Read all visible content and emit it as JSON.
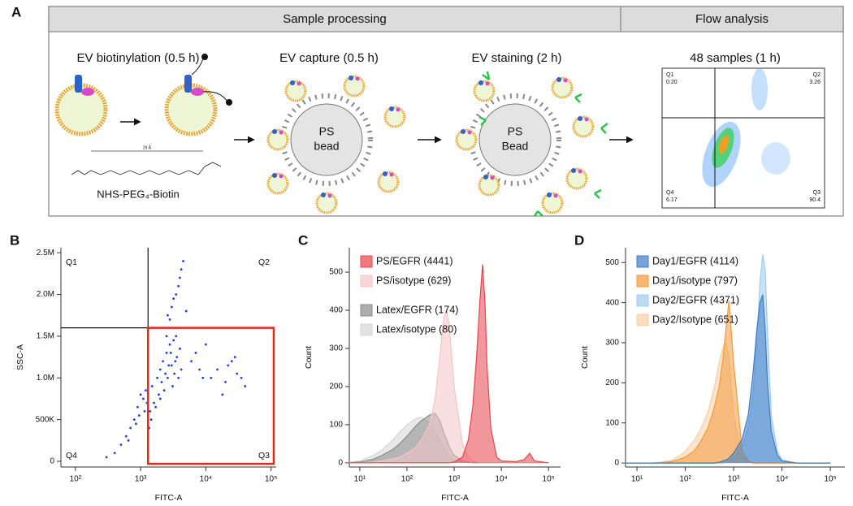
{
  "panel_a": {
    "label": "A",
    "headers": [
      "Sample processing",
      "Flow analysis"
    ],
    "steps": [
      "EV biotinylation (0.5 h)",
      "EV capture (0.5 h)",
      "EV staining (2 h)",
      "48 samples (1 h)"
    ],
    "reagent": "NHS-PEG₄-Biotin",
    "spacer_length": "29 Å",
    "beads": [
      [
        "PS",
        "bead"
      ],
      [
        "PS",
        "Bead"
      ]
    ],
    "flow_plot": [
      {
        "name": "Q1",
        "value": "0.20"
      },
      {
        "name": "Q2",
        "value": "3.26"
      },
      {
        "name": "Q4",
        "value": "6.17"
      },
      {
        "name": "Q3",
        "value": "90.4"
      }
    ]
  },
  "chart_data": [
    {
      "type": "scatter",
      "panel_label": "B",
      "x_label": "FITC-A",
      "y_label": "SSC-A",
      "xlog": true,
      "color": "#2140d8",
      "xlim": [
        60,
        120000
      ],
      "ylim": [
        -68000,
        2560000
      ],
      "xticks": [
        {
          "value": 100,
          "label": "10²"
        },
        {
          "value": 1000,
          "label": "10³"
        },
        {
          "value": 10000,
          "label": "10⁴"
        },
        {
          "value": 100000,
          "label": "10⁵"
        }
      ],
      "yticks": [
        0,
        {
          "value": 500000,
          "label": "500K"
        },
        {
          "value": 1000000,
          "label": "1.0M"
        },
        {
          "value": 1500000,
          "label": "1.5M"
        },
        {
          "value": 2000000,
          "label": "2.0M"
        },
        {
          "value": 2500000,
          "label": "2.5M"
        }
      ],
      "quadrant_x": 1300,
      "quadrant_y": 1600000,
      "quadrants": [
        "Q1",
        "Q2",
        "Q3",
        "Q4"
      ],
      "gate_xlim": [
        1300,
        110000
      ],
      "gate_ylim": [
        -30000,
        1600000
      ],
      "gate_color": "#e8281e",
      "x": [
        1500,
        1800,
        2000,
        2200,
        2500,
        2800,
        3000,
        3300,
        3600,
        4000,
        1600,
        1900,
        2100,
        2400,
        2700,
        2900,
        3200,
        3500,
        3800,
        4200,
        1400,
        1700,
        2300,
        2600,
        3100,
        3400,
        1350,
        1450,
        2000,
        2500,
        800,
        600,
        900,
        1000,
        1100,
        700,
        500,
        400,
        1200,
        950,
        300,
        650,
        850,
        1150,
        1250,
        2800,
        3000,
        3500,
        4000,
        4500,
        3200,
        3800,
        2600,
        4200,
        5000,
        12000,
        15000,
        20000,
        25000,
        30000,
        18000,
        22000,
        40000,
        28000,
        35000,
        6000,
        8000,
        7000,
        9000,
        10000
      ],
      "y": [
        900000,
        1000000,
        1100000,
        1200000,
        1300000,
        1400000,
        1150000,
        1050000,
        1250000,
        1350000,
        700000,
        800000,
        950000,
        1050000,
        1150000,
        1300000,
        1450000,
        1500000,
        1000000,
        1100000,
        600000,
        650000,
        850000,
        1000000,
        900000,
        1200000,
        400000,
        500000,
        750000,
        1500000,
        500000,
        300000,
        650000,
        800000,
        750000,
        400000,
        200000,
        100000,
        850000,
        550000,
        50000,
        250000,
        450000,
        600000,
        700000,
        1700000,
        1850000,
        2000000,
        2200000,
        2400000,
        1950000,
        2100000,
        1750000,
        2300000,
        1800000,
        1000000,
        1100000,
        950000,
        1200000,
        1050000,
        800000,
        1150000,
        900000,
        1250000,
        1000000,
        1200000,
        1100000,
        1300000,
        1000000,
        1400000
      ]
    },
    {
      "type": "area",
      "panel_label": "C",
      "x_label": "FITC-A",
      "y_label": "Count",
      "xlog": true,
      "xlim": [
        6,
        180000
      ],
      "ylim": [
        -11,
        564
      ],
      "xticks": [
        {
          "value": 10,
          "label": "10¹"
        },
        {
          "value": 100,
          "label": "10²"
        },
        {
          "value": 1000,
          "label": "10³"
        },
        {
          "value": 10000,
          "label": "10⁴"
        },
        {
          "value": 100000,
          "label": "10⁵"
        }
      ],
      "yticks": [
        0,
        100,
        200,
        300,
        400,
        500
      ],
      "x": [
        5,
        10,
        20,
        30,
        50,
        70,
        100,
        150,
        200,
        300,
        400,
        500,
        600,
        700,
        800,
        1000,
        1500,
        2000,
        2500,
        3000,
        3500,
        4000,
        4500,
        5000,
        6000,
        8000,
        10000,
        20000,
        30000,
        40000,
        50000,
        100000
      ],
      "series": [
        {
          "name": "PS/EGFR (4441)",
          "color": "#e8434b",
          "values": [
            0,
            0,
            0,
            0,
            0,
            0,
            0,
            0,
            0,
            0,
            0,
            0,
            0,
            0,
            0,
            2,
            15,
            60,
            150,
            280,
            420,
            520,
            420,
            250,
            90,
            15,
            5,
            3,
            8,
            25,
            5,
            0
          ]
        },
        {
          "name": "PS/isotype (629)",
          "color": "#f5c4c6",
          "values": [
            0,
            0,
            2,
            5,
            10,
            15,
            25,
            40,
            60,
            100,
            170,
            280,
            380,
            400,
            350,
            200,
            50,
            15,
            5,
            2,
            0,
            0,
            0,
            0,
            0,
            0,
            0,
            0,
            0,
            0,
            0,
            0
          ]
        },
        {
          "name": "Latex/EGFR (174)",
          "color": "#8a8a8a",
          "values": [
            0,
            2,
            10,
            20,
            35,
            50,
            70,
            95,
            110,
            125,
            130,
            110,
            80,
            60,
            40,
            20,
            5,
            2,
            0,
            0,
            0,
            0,
            0,
            0,
            0,
            0,
            0,
            0,
            0,
            0,
            0,
            0
          ]
        },
        {
          "name": "Latex/isotype (80)",
          "color": "#d6d6d6",
          "values": [
            0,
            5,
            20,
            35,
            60,
            80,
            100,
            115,
            120,
            105,
            80,
            55,
            35,
            25,
            15,
            8,
            2,
            0,
            0,
            0,
            0,
            0,
            0,
            0,
            0,
            0,
            0,
            0,
            0,
            0,
            0,
            0
          ]
        }
      ]
    },
    {
      "type": "area",
      "panel_label": "D",
      "x_label": "FITC-A",
      "y_label": "Count",
      "xlog": true,
      "xlim": [
        5.8,
        200000
      ],
      "ylim": [
        -10,
        537
      ],
      "xticks": [
        {
          "value": 10,
          "label": "10¹"
        },
        {
          "value": 100,
          "label": "10²"
        },
        {
          "value": 1000,
          "label": "10³"
        },
        {
          "value": 10000,
          "label": "10⁴"
        },
        {
          "value": 100000,
          "label": "10⁵"
        }
      ],
      "yticks": [
        0,
        100,
        200,
        300,
        400,
        500
      ],
      "x": [
        5,
        10,
        20,
        30,
        50,
        70,
        100,
        150,
        200,
        300,
        400,
        500,
        600,
        700,
        800,
        1000,
        1500,
        2000,
        2500,
        3000,
        3500,
        4000,
        4500,
        5000,
        6000,
        8000,
        10000,
        20000,
        30000,
        40000,
        50000,
        100000
      ],
      "series": [
        {
          "name": "Day1/EGFR (4114)",
          "color": "#3d7cc9",
          "values": [
            0,
            0,
            0,
            0,
            0,
            0,
            0,
            0,
            0,
            0,
            0,
            2,
            5,
            8,
            12,
            25,
            60,
            120,
            220,
            330,
            400,
            420,
            330,
            200,
            80,
            20,
            5,
            0,
            0,
            0,
            0,
            0
          ]
        },
        {
          "name": "Day1/isotype (797)",
          "color": "#f39a3a",
          "values": [
            0,
            0,
            0,
            1,
            3,
            8,
            15,
            30,
            50,
            90,
            140,
            190,
            260,
            340,
            405,
            250,
            30,
            5,
            0,
            0,
            0,
            0,
            0,
            0,
            0,
            0,
            0,
            0,
            0,
            0,
            0,
            0
          ]
        },
        {
          "name": "Day2/EGFR (4371)",
          "color": "#9fcbf0",
          "values": [
            0,
            0,
            0,
            0,
            0,
            0,
            0,
            0,
            0,
            0,
            0,
            0,
            0,
            2,
            5,
            15,
            40,
            90,
            170,
            300,
            450,
            520,
            480,
            330,
            120,
            30,
            8,
            0,
            0,
            0,
            0,
            0
          ]
        },
        {
          "name": "Day2/Isotype (651)",
          "color": "#f9cfa6",
          "values": [
            0,
            0,
            0,
            2,
            6,
            15,
            30,
            55,
            80,
            130,
            190,
            250,
            290,
            300,
            260,
            120,
            15,
            3,
            0,
            0,
            0,
            0,
            0,
            0,
            0,
            0,
            0,
            0,
            0,
            0,
            0,
            0
          ]
        }
      ]
    }
  ]
}
